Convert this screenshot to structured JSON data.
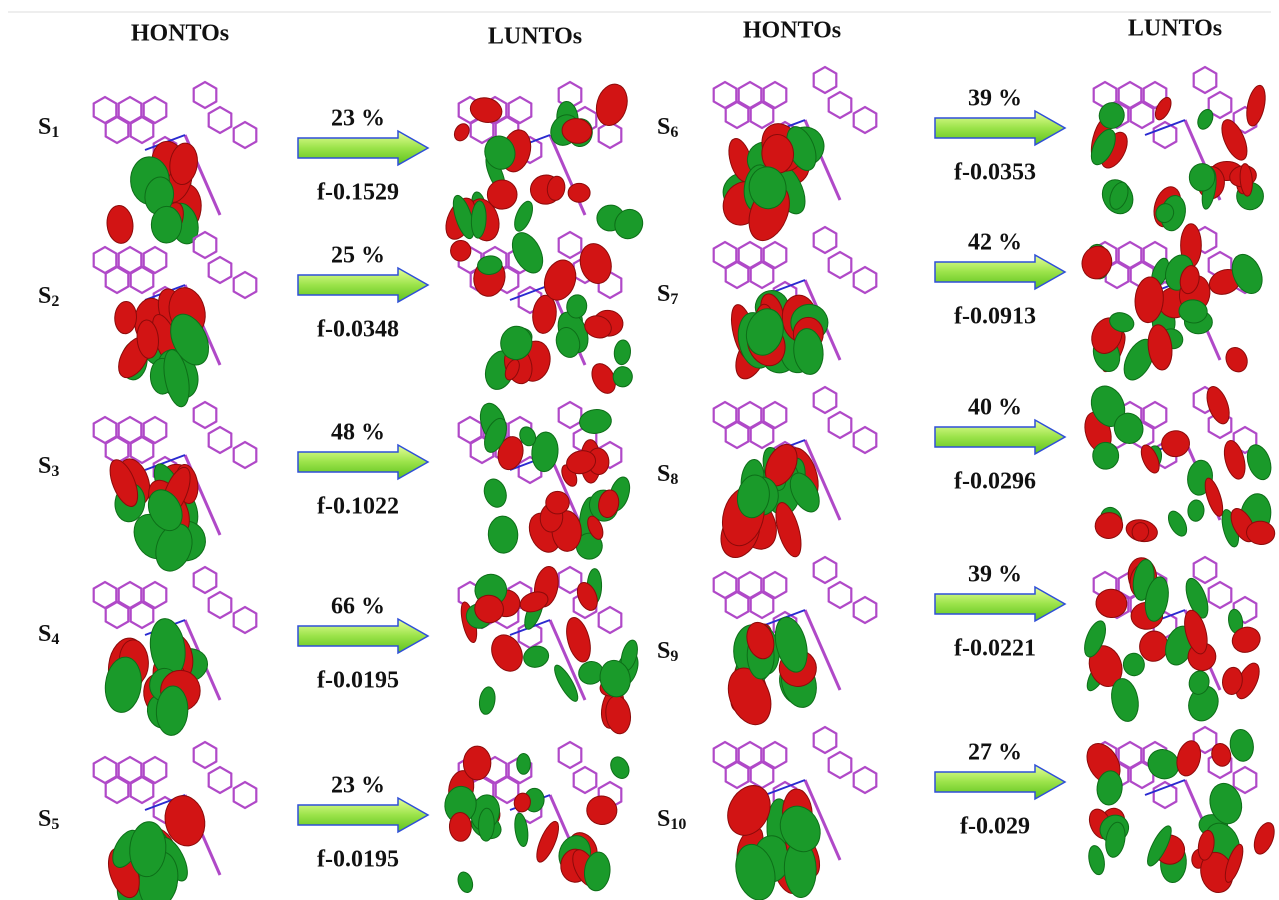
{
  "panels": [
    {
      "honto_header": "HONTOs",
      "lunto_header": "LUNTOs",
      "rows": [
        {
          "state": "S",
          "index": "1",
          "percent": "23 %",
          "f": "f-0.1529"
        },
        {
          "state": "S",
          "index": "2",
          "percent": "25 %",
          "f": "f-0.0348"
        },
        {
          "state": "S",
          "index": "3",
          "percent": "48 %",
          "f": "f-0.1022"
        },
        {
          "state": "S",
          "index": "4",
          "percent": "66 %",
          "f": "f-0.0195"
        },
        {
          "state": "S",
          "index": "5",
          "percent": "23 %",
          "f": "f-0.0195"
        }
      ]
    },
    {
      "honto_header": "HONTOs",
      "lunto_header": "LUNTOs",
      "rows": [
        {
          "state": "S",
          "index": "6",
          "percent": "39 %",
          "f": "f-0.0353"
        },
        {
          "state": "S",
          "index": "7",
          "percent": "42 %",
          "f": "f-0.0913"
        },
        {
          "state": "S",
          "index": "8",
          "percent": "40 %",
          "f": "f-0.0296"
        },
        {
          "state": "S",
          "index": "9",
          "percent": "39 %",
          "f": "f-0.0221"
        },
        {
          "state": "S",
          "index": "10",
          "percent": "27 %",
          "f": "f-0.029"
        }
      ]
    }
  ]
}
